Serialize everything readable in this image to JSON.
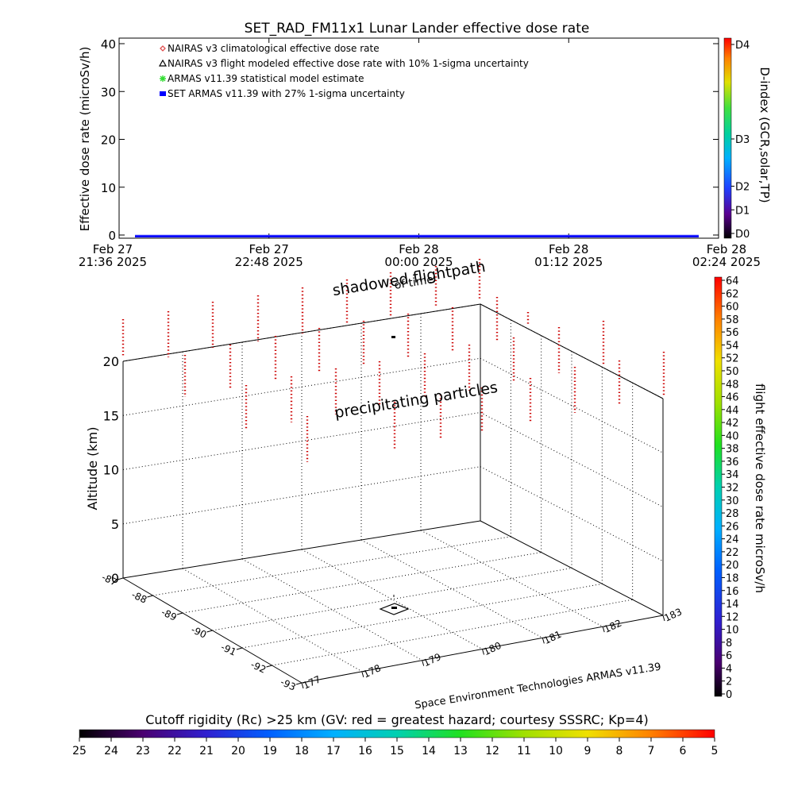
{
  "chart_data": [
    {
      "type": "line",
      "title": "SET_RAD_FM11x1  Lunar Lander effective dose rate",
      "ylabel": "Effective dose rate (microSv/h)",
      "xlabel": "",
      "ylim": [
        0,
        40
      ],
      "y_ticks": [
        "0",
        "10",
        "20",
        "30",
        "40"
      ],
      "x_ticks": [
        {
          "date": "Feb 27",
          "time": "21:36 2025"
        },
        {
          "date": "Feb 27",
          "time": "22:48 2025"
        },
        {
          "date": "Feb 28",
          "time": "00:00 2025"
        },
        {
          "date": "Feb 28",
          "time": "01:12 2025"
        },
        {
          "date": "Feb 28",
          "time": "02:24 2025"
        }
      ],
      "legend": [
        {
          "label": "NAIRAS v3 climatological effective dose rate",
          "color": "#e05050",
          "symbol": "diamond"
        },
        {
          "label": "NAIRAS v3 flight modeled effective dose rate with 10% 1-sigma uncertainty",
          "color": "#000000",
          "symbol": "triangle"
        },
        {
          "label": "ARMAS v11.39 statistical model estimate",
          "color": "#33dd33",
          "symbol": "asterisk"
        },
        {
          "label": "SET ARMAS v11.39 with 27% 1-sigma uncertainty",
          "color": "#0000ff",
          "symbol": "square"
        }
      ],
      "legend_position": "top-left",
      "series": [
        {
          "name": "SET ARMAS v11.39 with 27% 1-sigma uncertainty",
          "x": [
            "Feb 27 21:42 2025",
            "Feb 28 02:24 2025"
          ],
          "values": [
            0,
            0
          ]
        }
      ],
      "colorbar": {
        "label": "D-index (GCR,solar,TP)",
        "ticks": [
          "D0",
          "D1",
          "D2",
          "D3",
          "D4"
        ],
        "tick_values": [
          0,
          0.5,
          1,
          2,
          4
        ],
        "range": [
          0,
          4
        ],
        "position": "right"
      }
    },
    {
      "type": "scatter",
      "subtype": "3d",
      "zlabel": "Altitude (km)",
      "z_ticks": [
        "0",
        "5",
        "10",
        "15",
        "20"
      ],
      "zlim": [
        0,
        20
      ],
      "x_ticks": [
        "177",
        "178",
        "179",
        "180",
        "181",
        "182",
        "183"
      ],
      "xlim": [
        177,
        183
      ],
      "y_ticks": [
        "-87",
        "-88",
        "-89",
        "-90",
        "-91",
        "-92",
        "-93"
      ],
      "ylim": [
        -93,
        -87
      ],
      "annotations": [
        "shadowed flightpath",
        "of time",
        "precipitating particles"
      ],
      "credit": "Space Environment Technologies ARMAS v11.39",
      "particle_color": "#cc0000",
      "flightpath_marker_color": "#000000",
      "colorbar": {
        "label": "flight effective dose rate microSv/h",
        "ticks": [
          "0",
          "2",
          "4",
          "6",
          "8",
          "10",
          "12",
          "14",
          "16",
          "18",
          "20",
          "22",
          "24",
          "26",
          "28",
          "30",
          "32",
          "34",
          "36",
          "38",
          "40",
          "42",
          "44",
          "46",
          "48",
          "50",
          "52",
          "54",
          "56",
          "58",
          "60",
          "62",
          "64"
        ],
        "range": [
          0,
          64
        ],
        "position": "right"
      }
    },
    {
      "type": "heatmap",
      "subtype": "colorbar",
      "title": "Cutoff rigidity (Rc) >25 km (GV: red = greatest hazard; courtesy SSSRC; Kp=4)",
      "ticks": [
        "25",
        "24",
        "23",
        "22",
        "21",
        "20",
        "19",
        "18",
        "17",
        "16",
        "15",
        "14",
        "13",
        "12",
        "11",
        "10",
        "9",
        "8",
        "7",
        "6",
        "5"
      ],
      "range": [
        25,
        5
      ],
      "position": "bottom"
    }
  ]
}
